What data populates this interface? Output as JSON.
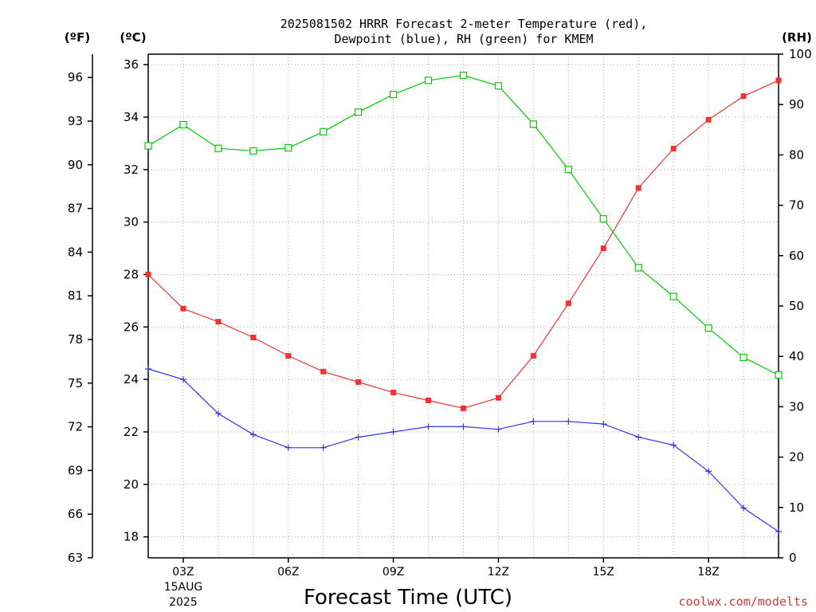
{
  "chart_data": {
    "type": "line",
    "title_line1": "2025081502 HRRR Forecast 2-meter Temperature (red),",
    "title_line2": "Dewpoint (blue), RH (green) for KMEM",
    "xlabel": "Forecast Time (UTC)",
    "credit": "coolwx.com/modelts",
    "left_axis_f": {
      "unit_label": "(ºF)",
      "ticks": [
        "63",
        "66",
        "69",
        "72",
        "75",
        "78",
        "81",
        "84",
        "87",
        "90",
        "93",
        "96"
      ],
      "range": [
        63,
        97.6
      ]
    },
    "left_axis_c": {
      "unit_label": "(ºC)",
      "ticks": [
        "18",
        "20",
        "22",
        "24",
        "26",
        "28",
        "30",
        "32",
        "34",
        "36"
      ],
      "range": [
        17.2,
        36.4
      ]
    },
    "right_axis_rh": {
      "unit_label": "(RH)",
      "ticks": [
        "0",
        "10",
        "20",
        "30",
        "40",
        "50",
        "60",
        "70",
        "80",
        "90",
        "100"
      ],
      "range": [
        0,
        100
      ]
    },
    "x_range_hours": [
      2,
      20
    ],
    "x_ticks": [
      {
        "hour": 3,
        "label": "03Z",
        "sub1": "15AUG",
        "sub2": "2025"
      },
      {
        "hour": 6,
        "label": "06Z",
        "sub1": "",
        "sub2": ""
      },
      {
        "hour": 9,
        "label": "09Z",
        "sub1": "",
        "sub2": ""
      },
      {
        "hour": 12,
        "label": "12Z",
        "sub1": "",
        "sub2": ""
      },
      {
        "hour": 15,
        "label": "15Z",
        "sub1": "",
        "sub2": ""
      },
      {
        "hour": 18,
        "label": "18Z",
        "sub1": "",
        "sub2": ""
      }
    ],
    "x_hours": [
      2,
      3,
      4,
      5,
      6,
      7,
      8,
      9,
      10,
      11,
      12,
      13,
      14,
      15,
      16,
      17,
      18,
      19,
      20
    ],
    "grid": true,
    "series": [
      {
        "name": "Temperature",
        "color": "#ee3333",
        "marker": "square-filled",
        "axis": "C",
        "values": [
          28.0,
          26.7,
          26.2,
          25.6,
          24.9,
          24.3,
          23.9,
          23.5,
          23.2,
          22.9,
          23.3,
          24.9,
          26.9,
          29.0,
          31.3,
          32.8,
          33.9,
          34.8,
          35.4
        ]
      },
      {
        "name": "Dewpoint",
        "color": "#3333ee",
        "marker": "plus",
        "axis": "C",
        "values": [
          24.4,
          24.0,
          22.7,
          21.9,
          21.4,
          21.4,
          21.8,
          22.0,
          22.2,
          22.2,
          22.1,
          22.4,
          22.4,
          22.3,
          21.8,
          21.5,
          20.5,
          19.1,
          18.2
        ]
      },
      {
        "name": "RH",
        "color": "#00cc00",
        "marker": "square-open",
        "axis": "RH",
        "values": [
          81.8,
          86.0,
          81.3,
          80.8,
          81.4,
          84.6,
          88.5,
          92.0,
          94.8,
          95.8,
          93.7,
          86.1,
          77.1,
          67.3,
          57.6,
          51.9,
          45.6,
          39.8,
          36.3
        ]
      }
    ]
  }
}
